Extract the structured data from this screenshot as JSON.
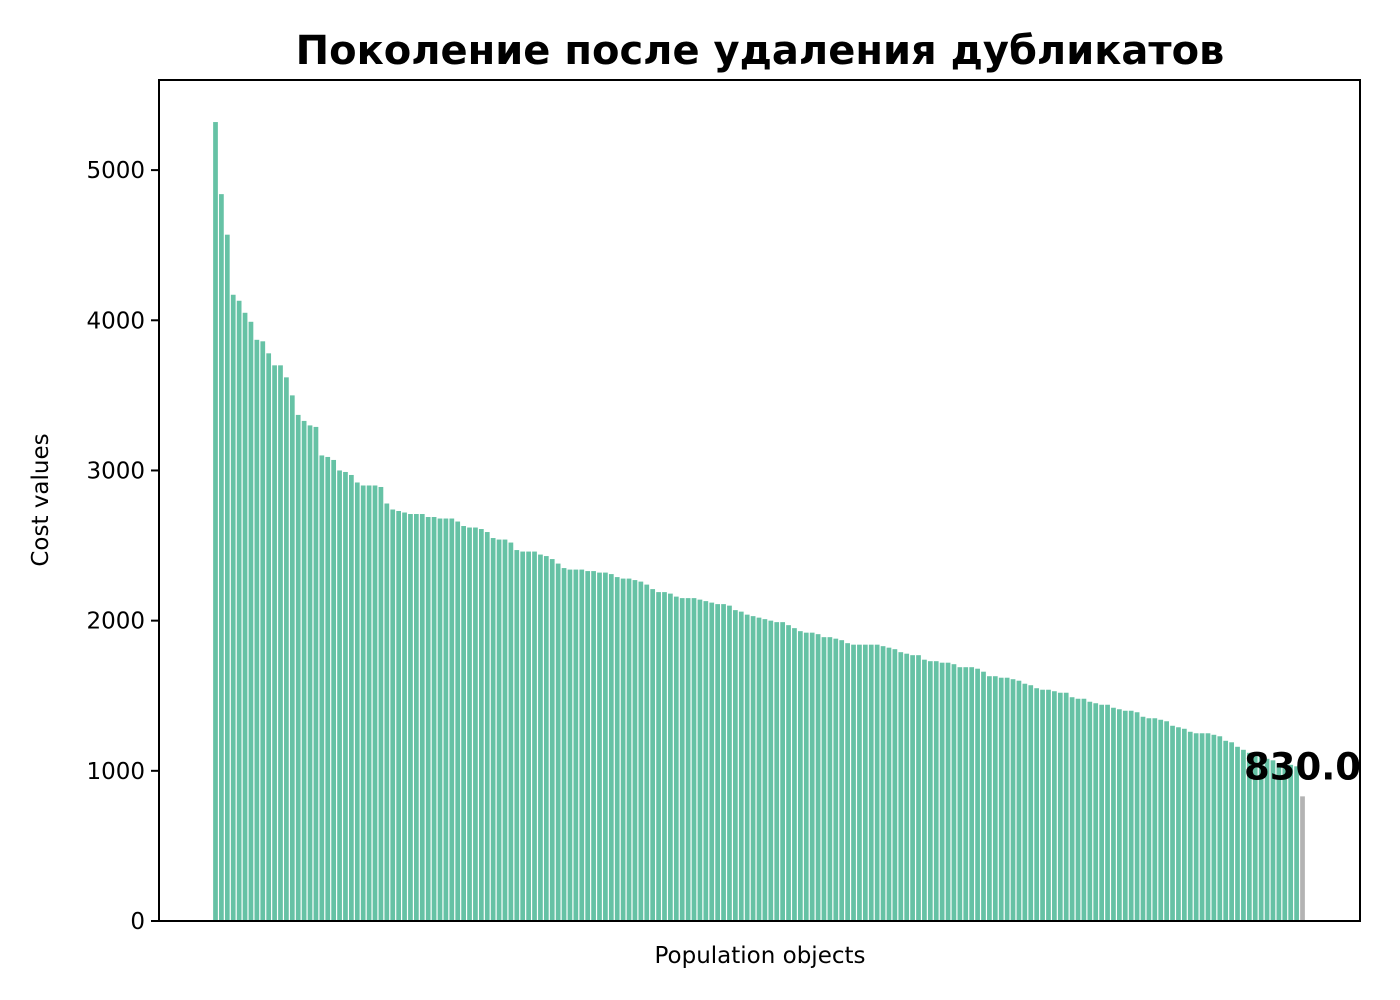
{
  "chart_data": {
    "type": "bar",
    "title": "Поколение после удаления дубликатов",
    "xlabel": "Population objects",
    "ylabel": "Cost values",
    "ylim": [
      0,
      5600
    ],
    "yticks": [
      0,
      1000,
      2000,
      3000,
      4000,
      5000
    ],
    "ytick_labels": [
      "0",
      "1000",
      "2000",
      "3000",
      "4000",
      "5000"
    ],
    "grid": false,
    "legend": "none",
    "colors": {
      "bar": "#66c2a5",
      "highlight": "#b3b3b3"
    },
    "annotation": {
      "text": "830.0",
      "value": 830
    },
    "values": [
      5320,
      4840,
      4570,
      4170,
      4130,
      4050,
      3990,
      3870,
      3860,
      3780,
      3700,
      3700,
      3620,
      3500,
      3370,
      3330,
      3300,
      3290,
      3100,
      3090,
      3070,
      3000,
      2990,
      2970,
      2920,
      2900,
      2900,
      2900,
      2890,
      2780,
      2740,
      2730,
      2720,
      2710,
      2710,
      2710,
      2690,
      2690,
      2680,
      2680,
      2680,
      2660,
      2630,
      2620,
      2620,
      2610,
      2590,
      2550,
      2540,
      2540,
      2520,
      2470,
      2460,
      2460,
      2460,
      2440,
      2430,
      2410,
      2380,
      2350,
      2340,
      2340,
      2340,
      2330,
      2330,
      2320,
      2320,
      2310,
      2290,
      2280,
      2280,
      2270,
      2260,
      2240,
      2210,
      2190,
      2190,
      2180,
      2160,
      2150,
      2150,
      2150,
      2140,
      2130,
      2120,
      2110,
      2110,
      2100,
      2070,
      2060,
      2040,
      2030,
      2020,
      2010,
      2000,
      1990,
      1990,
      1970,
      1950,
      1930,
      1920,
      1920,
      1910,
      1890,
      1890,
      1880,
      1870,
      1850,
      1840,
      1840,
      1840,
      1840,
      1840,
      1830,
      1820,
      1810,
      1790,
      1780,
      1770,
      1770,
      1740,
      1730,
      1730,
      1720,
      1720,
      1710,
      1690,
      1690,
      1690,
      1680,
      1660,
      1630,
      1630,
      1620,
      1620,
      1610,
      1600,
      1580,
      1570,
      1550,
      1540,
      1540,
      1530,
      1520,
      1520,
      1490,
      1480,
      1480,
      1460,
      1450,
      1440,
      1440,
      1420,
      1410,
      1400,
      1400,
      1390,
      1360,
      1350,
      1350,
      1340,
      1330,
      1300,
      1290,
      1280,
      1260,
      1250,
      1250,
      1250,
      1240,
      1230,
      1200,
      1190,
      1160,
      1140,
      1120,
      1100,
      1090,
      1080,
      1070,
      1050,
      1050,
      1040,
      1030,
      830
    ]
  }
}
